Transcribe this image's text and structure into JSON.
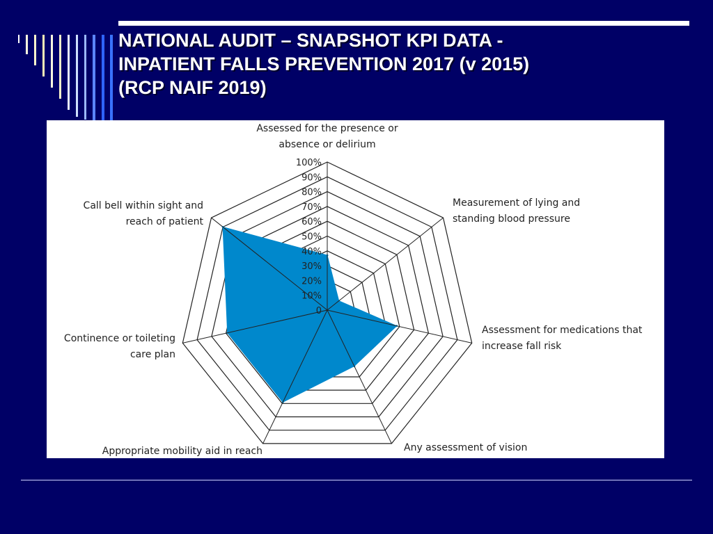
{
  "slide": {
    "title_lines": [
      "NATIONAL AUDIT – SNAPSHOT KPI DATA  -",
      "INPATIENT FALLS PREVENTION 2017 (v 2015)",
      "(RCP NAIF 2019)"
    ]
  },
  "colors": {
    "background": "#000066",
    "series_fill": "#0088cc",
    "grid": "#222222",
    "title": "#ffffff"
  },
  "chart_data": {
    "type": "radar",
    "categories": [
      "Assessed for the presence or absence or delirium",
      "Measurement of lying and standing blood pressure",
      "Assessment for medications that increase fall risk",
      "Any assessment of vision",
      "Appropriate mobility aid in reach",
      "Continence or toileting care plan",
      "Call bell within sight and reach of patient"
    ],
    "category_label_lines": [
      [
        "Assessed for the presence or",
        "absence or delirium"
      ],
      [
        "Measurement of lying and",
        "standing blood pressure"
      ],
      [
        "Assessment for medications that",
        "increase fall risk"
      ],
      [
        "Any assessment of vision"
      ],
      [
        "Appropriate mobility aid in reach"
      ],
      [
        "Continence or toileting",
        "care plan"
      ],
      [
        "Call bell within sight and",
        "reach of patient"
      ]
    ],
    "tick_labels": [
      "0",
      "10%",
      "20%",
      "30%",
      "40%",
      "50%",
      "60%",
      "70%",
      "80%",
      "90%",
      "100%"
    ],
    "rlim": [
      0,
      100
    ],
    "series": [
      {
        "values": [
          37,
          10,
          48,
          42,
          69,
          69,
          90
        ]
      }
    ]
  }
}
